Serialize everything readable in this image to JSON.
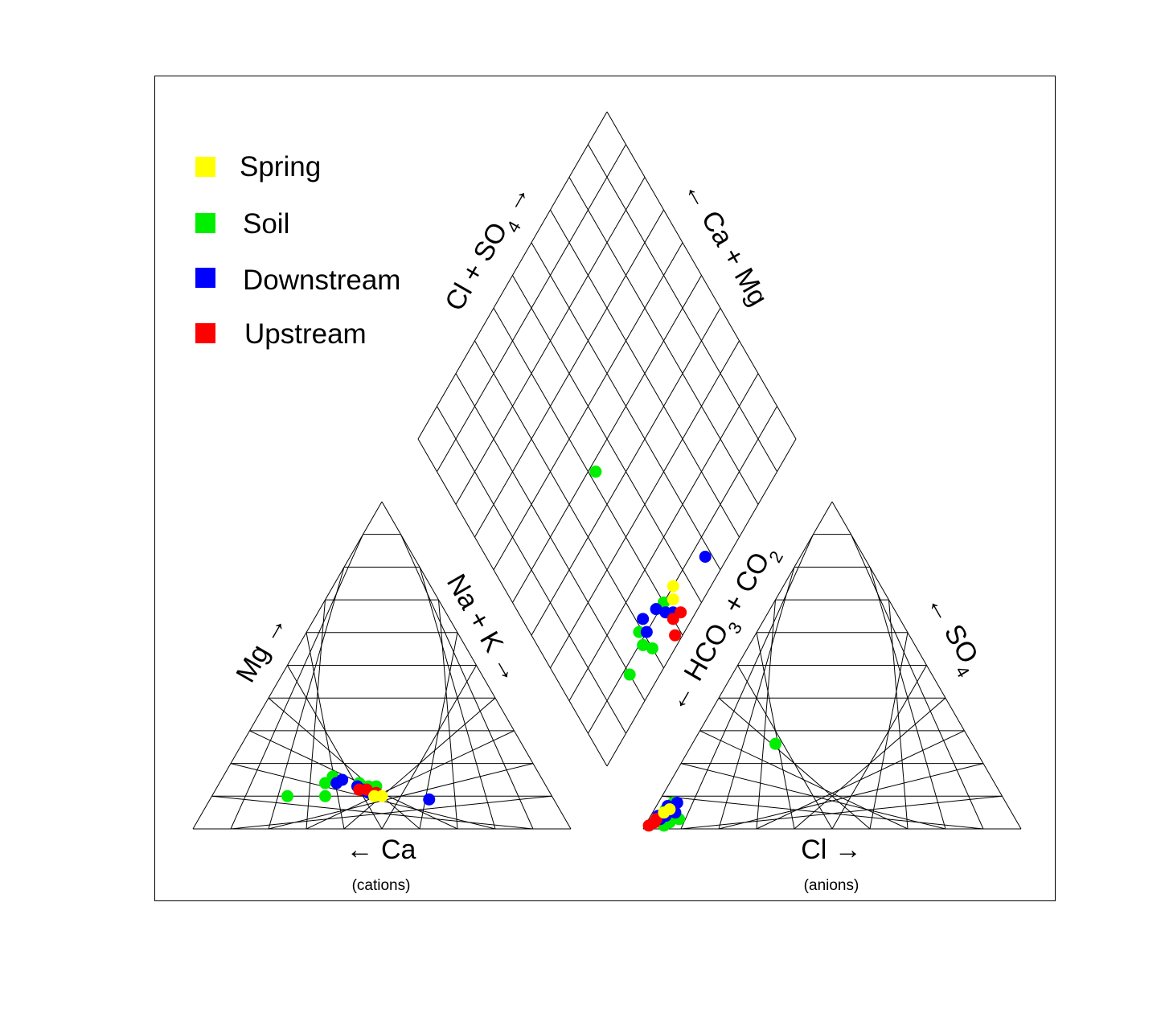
{
  "chart_data": {
    "type": "piper",
    "legend": {
      "placement": "top-left",
      "items": [
        {
          "label": "Spring",
          "color": "#ffff00"
        },
        {
          "label": "Soil",
          "color": "#00ee00"
        },
        {
          "label": "Downstream",
          "color": "#0000ff"
        },
        {
          "label": "Upstream",
          "color": "#ff0000"
        }
      ]
    },
    "cation_triangle": {
      "left_label": "Mg",
      "right_label": "Na + K",
      "bottom_label": "Ca",
      "caption": "(cations)"
    },
    "anion_triangle": {
      "left_label": "HCO",
      "left_label_sub1": "3",
      "left_label_mid": " + CO",
      "left_label_sub2": "2",
      "right_label": "SO",
      "right_label_sub": "4",
      "bottom_label": "Cl",
      "caption": "(anions)"
    },
    "diamond": {
      "upper_left_label": "Cl + SO",
      "upper_left_sub": "4",
      "upper_right_label": "Ca + Mg"
    },
    "grid_divisions": 10,
    "samples": [
      {
        "group": "Soil",
        "cations": {
          "Ca": 60,
          "Mg": 10,
          "NaK": 30
        },
        "anions": {
          "Cl": 5,
          "SO4": 1,
          "HCO3": 94
        }
      },
      {
        "group": "Soil",
        "cations": {
          "Ca": 58,
          "Mg": 14,
          "NaK": 28
        },
        "anions": {
          "Cl": 3,
          "SO4": 6,
          "HCO3": 91
        }
      },
      {
        "group": "Soil",
        "cations": {
          "Ca": 55,
          "Mg": 16,
          "NaK": 29
        },
        "anions": {
          "Cl": 4,
          "SO4": 8,
          "HCO3": 88
        }
      },
      {
        "group": "Soil",
        "cations": {
          "Ca": 49,
          "Mg": 14,
          "NaK": 37
        },
        "anions": {
          "Cl": 8,
          "SO4": 3,
          "HCO3": 89
        }
      },
      {
        "group": "Soil",
        "cations": {
          "Ca": 45,
          "Mg": 13,
          "NaK": 42
        },
        "anions": {
          "Cl": 22,
          "SO4": 26,
          "HCO3": 52
        }
      },
      {
        "group": "Soil",
        "cations": {
          "Ca": 70,
          "Mg": 10,
          "NaK": 20
        },
        "anions": {
          "Cl": 6,
          "SO4": 2,
          "HCO3": 92
        }
      },
      {
        "group": "Soil",
        "cations": {
          "Ca": 47,
          "Mg": 13,
          "NaK": 40
        },
        "anions": {
          "Cl": 5,
          "SO4": 5,
          "HCO3": 90
        }
      },
      {
        "group": "Downstream",
        "cations": {
          "Ca": 55,
          "Mg": 14,
          "NaK": 31
        },
        "anions": {
          "Cl": 3,
          "SO4": 7,
          "HCO3": 90
        }
      },
      {
        "group": "Downstream",
        "cations": {
          "Ca": 53,
          "Mg": 15,
          "NaK": 32
        },
        "anions": {
          "Cl": 5,
          "SO4": 8,
          "HCO3": 87
        }
      },
      {
        "group": "Downstream",
        "cations": {
          "Ca": 50,
          "Mg": 13,
          "NaK": 37
        },
        "anions": {
          "Cl": 6,
          "SO4": 5,
          "HCO3": 89
        }
      },
      {
        "group": "Downstream",
        "cations": {
          "Ca": 49,
          "Mg": 12,
          "NaK": 39
        },
        "anions": {
          "Cl": 4,
          "SO4": 4,
          "HCO3": 92
        }
      },
      {
        "group": "Downstream",
        "cations": {
          "Ca": 33,
          "Mg": 9,
          "NaK": 58
        },
        "anions": {
          "Cl": 3,
          "SO4": 3,
          "HCO3": 94
        }
      },
      {
        "group": "Downstream",
        "cations": {
          "Ca": 48,
          "Mg": 11,
          "NaK": 41
        },
        "anions": {
          "Cl": 2,
          "SO4": 4,
          "HCO3": 94
        }
      },
      {
        "group": "Upstream",
        "cations": {
          "Ca": 50,
          "Mg": 12,
          "NaK": 38
        },
        "anions": {
          "Cl": 1,
          "SO4": 1,
          "HCO3": 98
        }
      },
      {
        "group": "Upstream",
        "cations": {
          "Ca": 48,
          "Mg": 12,
          "NaK": 40
        },
        "anions": {
          "Cl": 2,
          "SO4": 3,
          "HCO3": 95
        }
      },
      {
        "group": "Upstream",
        "cations": {
          "Ca": 46,
          "Mg": 11,
          "NaK": 43
        },
        "anions": {
          "Cl": 2,
          "SO4": 2,
          "HCO3": 96
        }
      },
      {
        "group": "Spring",
        "cations": {
          "Ca": 47,
          "Mg": 10,
          "NaK": 43
        },
        "anions": {
          "Cl": 3,
          "SO4": 5,
          "HCO3": 92
        }
      },
      {
        "group": "Spring",
        "cations": {
          "Ca": 45,
          "Mg": 10,
          "NaK": 45
        },
        "anions": {
          "Cl": 4,
          "SO4": 6,
          "HCO3": 90
        }
      }
    ]
  }
}
